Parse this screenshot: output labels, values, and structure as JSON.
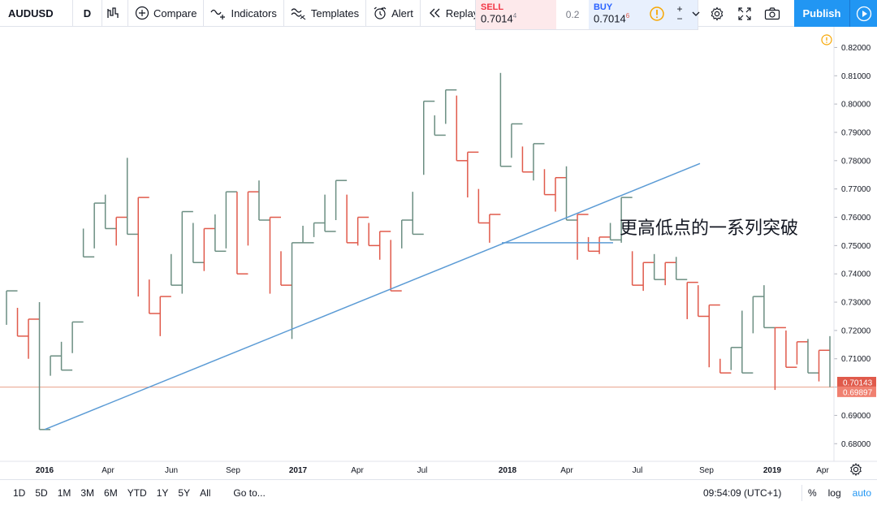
{
  "toolbar": {
    "symbol": "AUDUSD",
    "interval": "D",
    "compare": "Compare",
    "indicators": "Indicators",
    "templates": "Templates",
    "alert": "Alert",
    "replay": "Replay",
    "publish": "Publish"
  },
  "quote": {
    "sell_label": "SELL",
    "sell_price": "0.7014",
    "sell_sup": "4",
    "spread": "0.2",
    "buy_label": "BUY",
    "buy_price": "0.7014",
    "buy_sup": "6"
  },
  "colors": {
    "up": "#6b8e82",
    "down": "#e05a4b",
    "trendline": "#5b9bd5",
    "accent": "#2196f3",
    "price_line": "#e8a08a"
  },
  "annotation": "更高低点的一系列突破",
  "price_labels": {
    "current_up": "0.70143",
    "current_down": "0.69897"
  },
  "bottombar": {
    "ranges": [
      "1D",
      "5D",
      "1M",
      "3M",
      "6M",
      "YTD",
      "1Y",
      "5Y",
      "All"
    ],
    "goto": "Go to...",
    "time": "09:54:09 (UTC+1)",
    "percent": "%",
    "log": "log",
    "auto": "auto"
  },
  "chart_data": {
    "type": "line",
    "style": "kagi",
    "y_ticks": [
      "0.82000",
      "0.81000",
      "0.80000",
      "0.79000",
      "0.78000",
      "0.77000",
      "0.76000",
      "0.75000",
      "0.74000",
      "0.73000",
      "0.72000",
      "0.71000",
      "0.70000",
      "0.69000",
      "0.68000"
    ],
    "ylim": [
      0.6752,
      0.825
    ],
    "x_ticks": [
      "2016",
      "Apr",
      "Jun",
      "Sep",
      "2017",
      "Apr",
      "Jul",
      "2018",
      "Apr",
      "Jul",
      "Sep",
      "2019",
      "Apr"
    ],
    "kagi_points": [
      [
        0.734,
        0.722
      ],
      [
        0.728,
        0.718
      ],
      [
        0.724,
        0.71
      ],
      [
        0.73,
        0.685
      ],
      [
        0.711,
        0.704
      ],
      [
        0.716,
        0.706
      ],
      [
        0.723,
        0.712
      ],
      [
        0.756,
        0.746
      ],
      [
        0.765,
        0.749
      ],
      [
        0.768,
        0.756
      ],
      [
        0.76,
        0.75
      ],
      [
        0.781,
        0.754
      ],
      [
        0.767,
        0.732
      ],
      [
        0.738,
        0.726
      ],
      [
        0.732,
        0.718
      ],
      [
        0.747,
        0.736
      ],
      [
        0.762,
        0.733
      ],
      [
        0.758,
        0.744
      ],
      [
        0.756,
        0.741
      ],
      [
        0.761,
        0.748
      ],
      [
        0.769,
        0.749
      ],
      [
        0.769,
        0.74
      ],
      [
        0.769,
        0.75
      ],
      [
        0.773,
        0.759
      ],
      [
        0.76,
        0.733
      ],
      [
        0.748,
        0.736
      ],
      [
        0.751,
        0.717
      ],
      [
        0.757,
        0.751
      ],
      [
        0.758,
        0.753
      ],
      [
        0.768,
        0.755
      ],
      [
        0.773,
        0.759
      ],
      [
        0.768,
        0.751
      ],
      [
        0.76,
        0.75
      ],
      [
        0.758,
        0.75
      ],
      [
        0.755,
        0.745
      ],
      [
        0.752,
        0.734
      ],
      [
        0.759,
        0.749
      ],
      [
        0.769,
        0.754
      ],
      [
        0.801,
        0.775
      ],
      [
        0.796,
        0.789
      ],
      [
        0.805,
        0.793
      ],
      [
        0.803,
        0.78
      ],
      [
        0.783,
        0.767
      ],
      [
        0.77,
        0.758
      ],
      [
        0.761,
        0.751
      ],
      [
        0.811,
        0.778
      ],
      [
        0.793,
        0.781
      ],
      [
        0.785,
        0.776
      ],
      [
        0.786,
        0.773
      ],
      [
        0.777,
        0.768
      ],
      [
        0.774,
        0.762
      ],
      [
        0.778,
        0.759
      ],
      [
        0.761,
        0.745
      ],
      [
        0.753,
        0.748
      ],
      [
        0.753,
        0.747
      ],
      [
        0.758,
        0.752
      ],
      [
        0.767,
        0.751
      ],
      [
        0.748,
        0.736
      ],
      [
        0.744,
        0.734
      ],
      [
        0.747,
        0.738
      ],
      [
        0.744,
        0.736
      ],
      [
        0.746,
        0.738
      ],
      [
        0.737,
        0.724
      ],
      [
        0.736,
        0.725
      ],
      [
        0.729,
        0.707
      ],
      [
        0.71,
        0.705
      ],
      [
        0.714,
        0.706
      ],
      [
        0.727,
        0.705
      ],
      [
        0.732,
        0.719
      ],
      [
        0.736,
        0.721
      ],
      [
        0.721,
        0.699
      ],
      [
        0.72,
        0.707
      ],
      [
        0.716,
        0.708
      ],
      [
        0.717,
        0.705
      ],
      [
        0.713,
        0.702
      ],
      [
        0.718,
        0.7
      ]
    ],
    "trendline_label": "",
    "grid": false
  }
}
